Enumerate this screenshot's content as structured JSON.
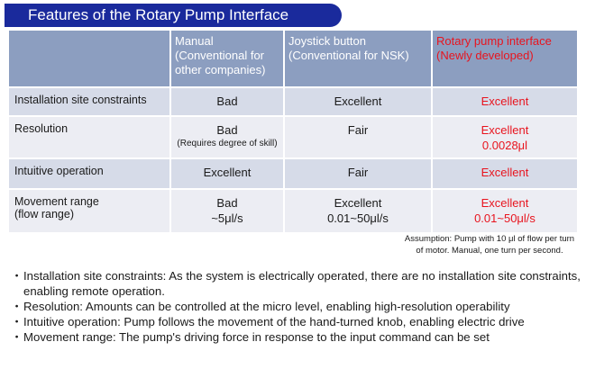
{
  "banner": {
    "title": "Features of the Rotary Pump Interface"
  },
  "table": {
    "headers": [
      {
        "line1": "Manual",
        "line2": "(Conventional for other companies)"
      },
      {
        "line1": "Joystick button",
        "line2": "(Conventional for NSK)"
      },
      {
        "line1": "Rotary pump interface",
        "line2": "(Newly developed)"
      }
    ],
    "rows": [
      {
        "label": "Installation site constraints",
        "manual": {
          "main": "Bad",
          "note": ""
        },
        "joystick": {
          "main": "Excellent",
          "note": ""
        },
        "rotary": {
          "main": "Excellent",
          "note": ""
        }
      },
      {
        "label": "Resolution",
        "manual": {
          "main": "Bad",
          "note": "(Requires degree of skill)"
        },
        "joystick": {
          "main": "Fair",
          "note": ""
        },
        "rotary": {
          "main": "Excellent",
          "note": "0.0028μl"
        }
      },
      {
        "label": "Intuitive operation",
        "manual": {
          "main": "Excellent",
          "note": ""
        },
        "joystick": {
          "main": "Fair",
          "note": ""
        },
        "rotary": {
          "main": "Excellent",
          "note": ""
        }
      },
      {
        "label_line1": "Movement range",
        "label_line2": "(flow range)",
        "manual": {
          "main": "Bad",
          "note": "~5μl/s"
        },
        "joystick": {
          "main": "Excellent",
          "note": "0.01~50μl/s"
        },
        "rotary": {
          "main": "Excellent",
          "note": "0.01~50μl/s"
        }
      }
    ]
  },
  "assumption": {
    "line1": "Assumption: Pump with 10 μl of flow per turn",
    "line2": "of motor. Manual, one turn per second."
  },
  "bullets": [
    "Installation site constraints: As the system is electrically operated, there are no installation site constraints, enabling remote operation.",
    "Resolution: Amounts can be controlled at the micro level, enabling high-resolution operability",
    "Intuitive operation: Pump follows the movement of the hand-turned knob, enabling electric drive",
    "Movement range: The pump's driving force in response to the input command can be set"
  ],
  "bullet_symbol": "・",
  "colors": {
    "banner": "#1a2a9c",
    "header": "#8c9ec0",
    "row_a": "#d6dbe8",
    "row_b": "#ecedf3",
    "highlight": "#e8141e"
  }
}
